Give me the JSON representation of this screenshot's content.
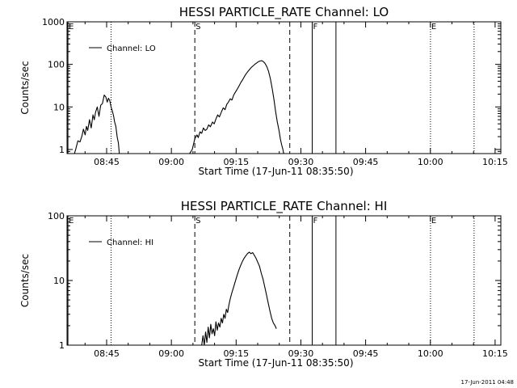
{
  "footer": {
    "timestamp": "17-Jun-2011 04:48"
  },
  "chart_data": [
    {
      "type": "line",
      "title": "HESSI PARTICLE_RATE Channel: LO",
      "xlabel": "Start Time (17-Jun-11 08:35:50)",
      "ylabel": "Counts/sec",
      "x_ticks": [
        "08:45",
        "09:00",
        "09:15",
        "09:30",
        "09:45",
        "10:00",
        "10:15"
      ],
      "x_tick_minutes": [
        9.17,
        24.17,
        39.17,
        54.17,
        69.17,
        84.17,
        99.17
      ],
      "xlim_minutes": [
        0,
        100.5
      ],
      "y_scale": "log",
      "ylim": [
        0.8,
        1000
      ],
      "y_ticks": [
        "1",
        "10",
        "100",
        "1000"
      ],
      "legend": {
        "label": "Channel: LO",
        "position": "top-left"
      },
      "markers": [
        {
          "label": "E",
          "minute": 0.2,
          "style": "solid"
        },
        {
          "label": "",
          "minute": 10.2,
          "style": "dotted"
        },
        {
          "label": "S",
          "minute": 29.6,
          "style": "dashed"
        },
        {
          "label": "",
          "minute": 51.6,
          "style": "dashed"
        },
        {
          "label": "F",
          "minute": 56.8,
          "style": "solid"
        },
        {
          "label": "",
          "minute": 62.3,
          "style": "solid"
        },
        {
          "label": "E",
          "minute": 84.2,
          "style": "dotted"
        },
        {
          "label": "",
          "minute": 94.3,
          "style": "dotted"
        }
      ],
      "series": [
        {
          "name": "Channel: LO",
          "segments": [
            {
              "x": [
                1.7,
                2.0,
                2.5,
                3.0,
                3.4,
                3.8,
                4.2,
                4.5,
                4.8,
                5.2,
                5.6,
                6.0,
                6.3,
                6.6,
                7.0,
                7.4,
                7.8,
                8.2,
                8.6,
                9.0,
                9.3,
                9.6,
                9.9,
                10.2,
                10.5,
                10.8,
                11.0,
                11.3,
                11.6,
                11.9,
                12.1
              ],
              "y": [
                0.8,
                1.0,
                1.6,
                1.5,
                2.0,
                3.0,
                2.2,
                3.5,
                2.8,
                5.0,
                3.2,
                6.5,
                5.0,
                7.5,
                10.0,
                6.0,
                11.0,
                12.0,
                19.0,
                17.0,
                13.0,
                16.0,
                14.0,
                10.0,
                8.0,
                6.0,
                4.5,
                3.5,
                2.0,
                1.4,
                0.8
              ]
            },
            {
              "x": [
                28.4,
                29.0,
                29.6,
                30.1,
                30.4,
                30.8,
                31.2,
                31.6,
                32.0,
                32.4,
                32.8,
                33.2,
                33.7,
                34.1,
                34.5,
                34.9,
                35.3,
                35.8,
                36.2,
                36.6,
                37.0,
                37.4,
                37.8,
                38.2,
                38.6,
                39.1,
                39.5,
                39.9,
                40.3,
                40.7,
                41.1,
                41.5,
                41.9,
                42.3,
                42.7,
                43.1,
                43.5,
                43.9,
                44.3,
                44.7,
                45.1,
                45.5,
                45.9,
                46.3,
                46.7,
                47.1,
                47.5,
                47.9,
                48.3,
                48.7,
                49.1,
                49.4,
                49.7,
                50.0,
                50.2
              ],
              "y": [
                0.8,
                1.0,
                1.8,
                2.2,
                1.9,
                2.6,
                2.4,
                3.2,
                2.8,
                3.0,
                3.8,
                3.4,
                4.4,
                4.0,
                5.2,
                6.5,
                5.8,
                7.8,
                9.5,
                8.6,
                11.5,
                13.0,
                15.5,
                14.5,
                19.0,
                23.0,
                27.0,
                32.0,
                38.0,
                44.0,
                52.0,
                60.0,
                68.0,
                76.0,
                85.0,
                92.0,
                100.0,
                108.0,
                115.0,
                120.0,
                122.0,
                116.0,
                104.0,
                88.0,
                68.0,
                46.0,
                28.0,
                16.0,
                8.0,
                4.5,
                2.8,
                1.8,
                1.3,
                1.0,
                0.8
              ]
            }
          ]
        }
      ]
    },
    {
      "type": "line",
      "title": "HESSI PARTICLE_RATE Channel: HI",
      "xlabel": "Start Time (17-Jun-11 08:35:50)",
      "ylabel": "Counts/sec",
      "x_ticks": [
        "08:45",
        "09:00",
        "09:15",
        "09:30",
        "09:45",
        "10:00",
        "10:15"
      ],
      "x_tick_minutes": [
        9.17,
        24.17,
        39.17,
        54.17,
        69.17,
        84.17,
        99.17
      ],
      "xlim_minutes": [
        0,
        100.5
      ],
      "y_scale": "log",
      "ylim": [
        1,
        100
      ],
      "y_ticks": [
        "1",
        "10",
        "100"
      ],
      "legend": {
        "label": "Channel: HI",
        "position": "top-left"
      },
      "markers": [
        {
          "label": "E",
          "minute": 0.2,
          "style": "solid"
        },
        {
          "label": "",
          "minute": 10.2,
          "style": "dotted"
        },
        {
          "label": "S",
          "minute": 29.6,
          "style": "dashed"
        },
        {
          "label": "",
          "minute": 51.6,
          "style": "dashed"
        },
        {
          "label": "F",
          "minute": 56.8,
          "style": "solid"
        },
        {
          "label": "",
          "minute": 62.3,
          "style": "solid"
        },
        {
          "label": "E",
          "minute": 84.2,
          "style": "dotted"
        },
        {
          "label": "",
          "minute": 94.3,
          "style": "dotted"
        }
      ],
      "series": [
        {
          "name": "Channel: HI",
          "segments": [
            {
              "x": [
                31.2,
                31.5,
                31.8,
                32.1,
                32.4,
                32.7,
                33.0,
                33.3,
                33.6,
                33.9,
                34.2,
                34.5,
                34.8,
                35.1,
                35.4,
                35.7,
                36.0,
                36.3,
                36.6,
                36.9,
                37.2,
                37.5,
                37.8,
                38.2,
                38.6,
                39.0,
                39.4,
                39.8,
                40.2,
                40.6,
                41.0,
                41.4,
                41.8,
                42.2,
                42.6,
                43.0,
                43.4,
                43.8,
                44.2,
                44.6,
                45.0,
                45.4,
                45.8,
                46.2,
                46.6,
                47.0,
                47.4,
                47.8,
                48.2,
                48.5
              ],
              "y": [
                1.0,
                1.4,
                1.0,
                1.6,
                1.1,
                1.9,
                1.3,
                2.1,
                1.5,
                1.8,
                1.4,
                2.3,
                1.7,
                2.2,
                1.9,
                2.6,
                2.2,
                3.0,
                2.6,
                3.6,
                3.2,
                4.2,
                5.2,
                6.5,
                8.0,
                9.8,
                12.0,
                14.5,
                17.0,
                19.5,
                22.0,
                24.0,
                26.0,
                27.5,
                26.0,
                27.0,
                24.5,
                22.0,
                19.0,
                16.5,
                13.0,
                10.5,
                8.0,
                6.0,
                4.5,
                3.4,
                2.6,
                2.2,
                2.0,
                1.8
              ]
            }
          ]
        }
      ]
    }
  ]
}
